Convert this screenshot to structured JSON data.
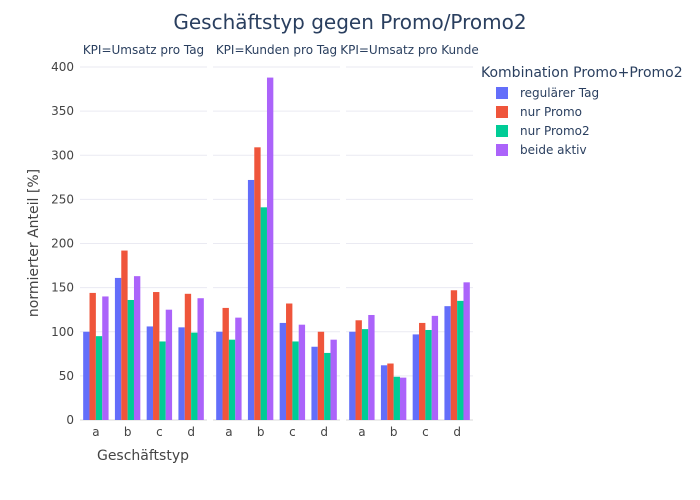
{
  "chart_data": {
    "type": "bar",
    "title": "Geschäftstyp gegen Promo/Promo2",
    "xlabel": "Geschäftstyp",
    "ylabel": "normierter Anteil [%]",
    "ylim": [
      0,
      400
    ],
    "yticks": [
      0,
      50,
      100,
      150,
      200,
      250,
      300,
      350,
      400
    ],
    "grid": true,
    "legend": {
      "title": "Kombination Promo+Promo2",
      "placement": "right"
    },
    "categories": [
      "a",
      "b",
      "c",
      "d"
    ],
    "series_meta": [
      {
        "name": "regulärer Tag",
        "color": "#636efa"
      },
      {
        "name": "nur Promo",
        "color": "#ef553b"
      },
      {
        "name": "nur Promo2",
        "color": "#00cc96"
      },
      {
        "name": "beide aktiv",
        "color": "#ab63fa"
      }
    ],
    "panels": [
      {
        "title": "KPI=Umsatz pro Tag",
        "series": [
          {
            "name": "regulärer Tag",
            "values": [
              100,
              161,
              106,
              105
            ]
          },
          {
            "name": "nur Promo",
            "values": [
              144,
              192,
              145,
              143
            ]
          },
          {
            "name": "nur Promo2",
            "values": [
              95,
              136,
              89,
              99
            ]
          },
          {
            "name": "beide aktiv",
            "values": [
              140,
              163,
              125,
              138
            ]
          }
        ]
      },
      {
        "title": "KPI=Kunden pro Tag",
        "series": [
          {
            "name": "regulärer Tag",
            "values": [
              100,
              272,
              110,
              83
            ]
          },
          {
            "name": "nur Promo",
            "values": [
              127,
              309,
              132,
              100
            ]
          },
          {
            "name": "nur Promo2",
            "values": [
              91,
              241,
              89,
              76
            ]
          },
          {
            "name": "beide aktiv",
            "values": [
              116,
              388,
              108,
              91
            ]
          }
        ]
      },
      {
        "title": "KPI=Umsatz pro Kunde",
        "series": [
          {
            "name": "regulärer Tag",
            "values": [
              100,
              62,
              97,
              129
            ]
          },
          {
            "name": "nur Promo",
            "values": [
              113,
              64,
              110,
              147
            ]
          },
          {
            "name": "nur Promo2",
            "values": [
              103,
              49,
              102,
              135
            ]
          },
          {
            "name": "beide aktiv",
            "values": [
              119,
              48,
              118,
              156
            ]
          }
        ]
      }
    ]
  }
}
